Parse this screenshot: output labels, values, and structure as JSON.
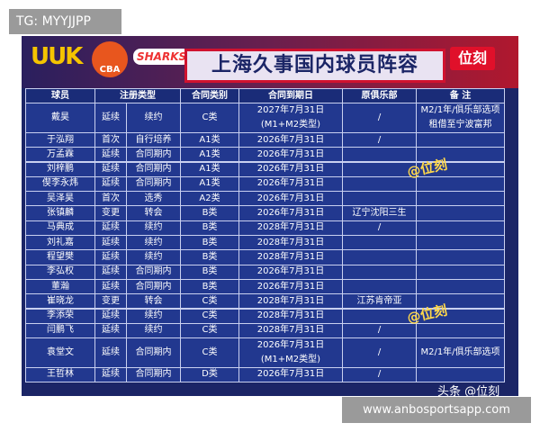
{
  "overlay": {
    "tag": "TG: MYYJJPP",
    "site": "www.anbosportsapp.com"
  },
  "header": {
    "logos": [
      "UUK",
      "CBA",
      "SHARKS"
    ],
    "title": "上海久事国内球员阵容",
    "badge": "位刻"
  },
  "watermarks": [
    "@位刻",
    "@位刻",
    "头条 @位刻"
  ],
  "table": {
    "columns": [
      "球员",
      "注册类型",
      "合同类别",
      "合同到期日",
      "原俱乐部",
      "备 注"
    ],
    "rows": [
      {
        "player": "戴昊",
        "kind": "延续",
        "type": "续约",
        "class": "C类",
        "expiry": [
          "2027年7月31日",
          "(M1+M2类型)"
        ],
        "club": "/",
        "note": [
          "M2/1年/俱乐部选项",
          "租借至宁波富邦"
        ]
      },
      {
        "player": "于泓翔",
        "kind": "首次",
        "type": "自行培养",
        "class": "A1类",
        "expiry": [
          "2026年7月31日"
        ],
        "club": "/"
      },
      {
        "player": "万孟霖",
        "kind": "延续",
        "type": "合同期内",
        "class": "A1类",
        "expiry": [
          "2026年7月31日"
        ]
      },
      {
        "player": "刘梓鹏",
        "kind": "延续",
        "type": "合同期内",
        "class": "A1类",
        "expiry": [
          "2026年7月31日"
        ]
      },
      {
        "player": "偰李永炜",
        "kind": "延续",
        "type": "合同期内",
        "class": "A1类",
        "expiry": [
          "2026年7月31日"
        ]
      },
      {
        "player": "吴泽昊",
        "kind": "首次",
        "type": "选秀",
        "class": "A2类",
        "expiry": [
          "2026年7月31日"
        ]
      },
      {
        "player": "张镇麟",
        "kind": "变更",
        "type": "转会",
        "class": "B类",
        "expiry": [
          "2026年7月31日"
        ],
        "club": "辽宁沈阳三生"
      },
      {
        "player": "马典成",
        "kind": "延续",
        "type": "续约",
        "class": "B类",
        "expiry": [
          "2028年7月31日"
        ],
        "club": "/"
      },
      {
        "player": "刘礼嘉",
        "kind": "延续",
        "type": "续约",
        "class": "B类",
        "expiry": [
          "2028年7月31日"
        ]
      },
      {
        "player": "程望樊",
        "kind": "延续",
        "type": "续约",
        "class": "B类",
        "expiry": [
          "2028年7月31日"
        ]
      },
      {
        "player": "李弘权",
        "kind": "延续",
        "type": "合同期内",
        "class": "B类",
        "expiry": [
          "2026年7月31日"
        ]
      },
      {
        "player": "董瀚",
        "kind": "延续",
        "type": "合同期内",
        "class": "B类",
        "expiry": [
          "2026年7月31日"
        ]
      },
      {
        "player": "崔晓龙",
        "kind": "变更",
        "type": "转会",
        "class": "C类",
        "expiry": [
          "2028年7月31日"
        ],
        "club": "江苏肯帝亚"
      },
      {
        "player": "李添荣",
        "kind": "延续",
        "type": "续约",
        "class": "C类",
        "expiry": [
          "2028年7月31日"
        ]
      },
      {
        "player": "闫鹏飞",
        "kind": "延续",
        "type": "续约",
        "class": "C类",
        "expiry": [
          "2028年7月31日"
        ],
        "club": "/"
      },
      {
        "player": "袁堂文",
        "kind": "延续",
        "type": "合同期内",
        "class": "C类",
        "expiry": [
          "2026年7月31日",
          "(M1+M2类型)"
        ],
        "club": "/",
        "note": [
          "M2/1年/俱乐部选项"
        ]
      },
      {
        "player": "王哲林",
        "kind": "延续",
        "type": "合同期内",
        "class": "D类",
        "expiry": [
          "2026年7月31日"
        ],
        "club": "/"
      }
    ]
  }
}
